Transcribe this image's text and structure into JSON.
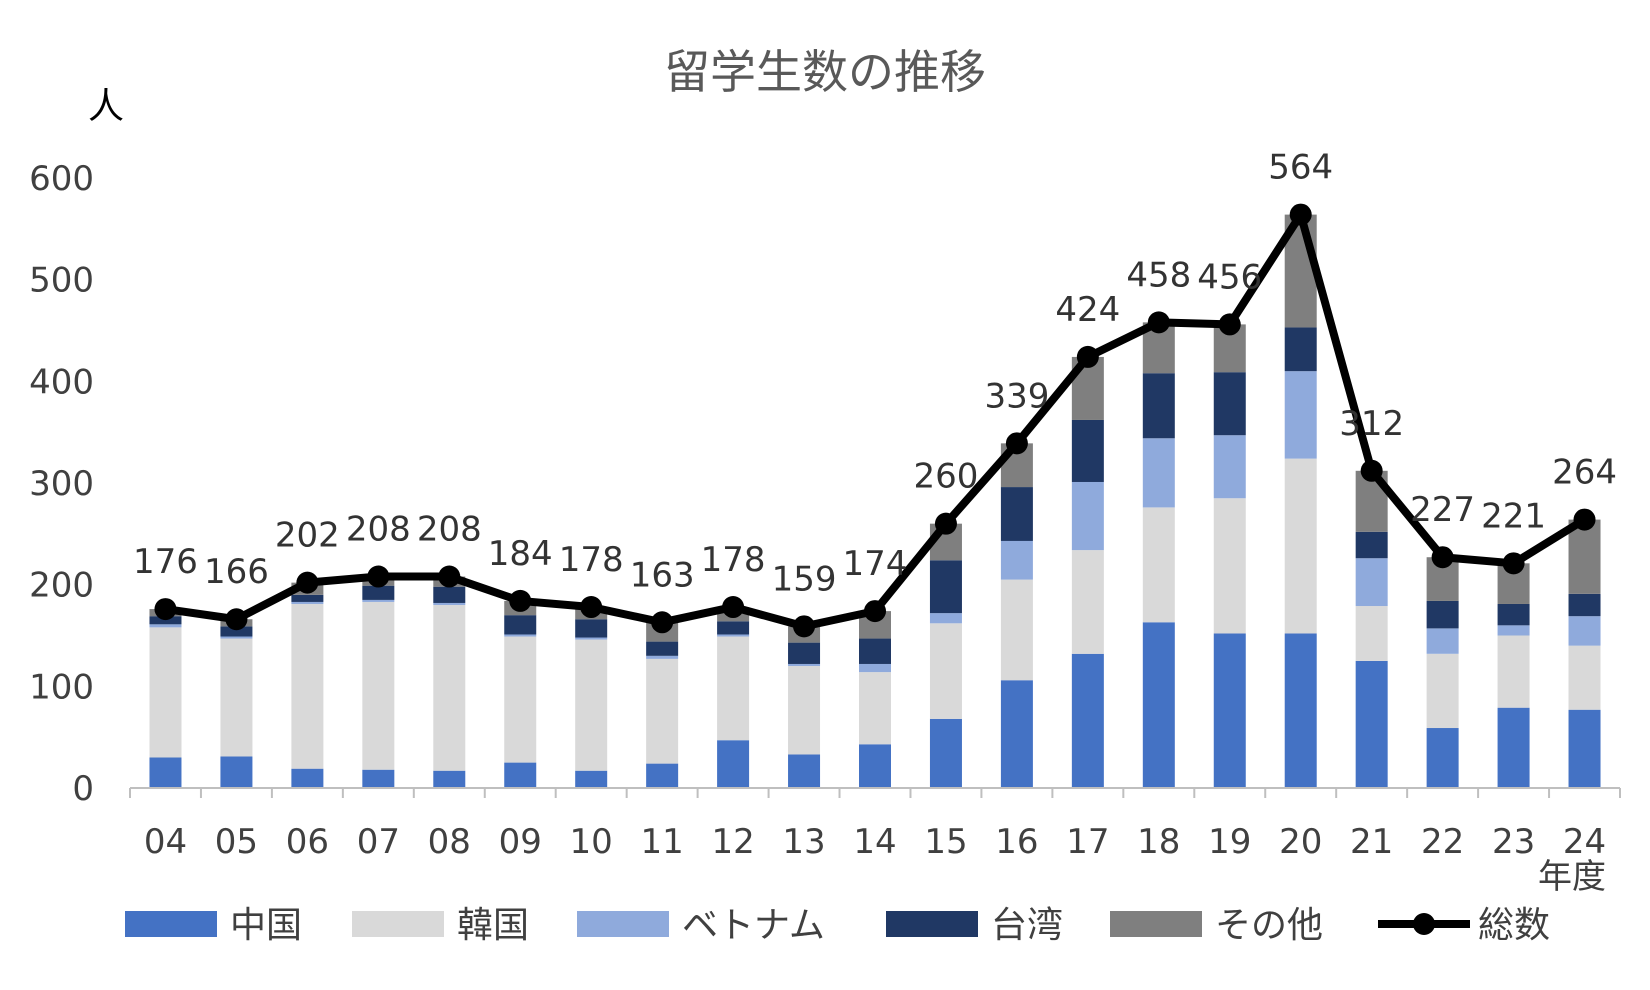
{
  "chart_data": {
    "type": "bar",
    "stacked": true,
    "title": "留学生数の推移",
    "ylabel": "人",
    "xlabel": "年度",
    "ylim": [
      0,
      600
    ],
    "yticks": [
      0,
      100,
      200,
      300,
      400,
      500,
      600
    ],
    "categories": [
      "04",
      "05",
      "06",
      "07",
      "08",
      "09",
      "10",
      "11",
      "12",
      "13",
      "14",
      "15",
      "16",
      "17",
      "18",
      "19",
      "20",
      "21",
      "22",
      "23",
      "24"
    ],
    "series": [
      {
        "name": "中国",
        "color": "#4472C4",
        "values": [
          30,
          31,
          19,
          18,
          17,
          25,
          17,
          24,
          47,
          33,
          43,
          68,
          106,
          132,
          163,
          152,
          152,
          125,
          59,
          79,
          77
        ]
      },
      {
        "name": "韓国",
        "color": "#D9D9D9",
        "values": [
          128,
          116,
          162,
          165,
          163,
          124,
          129,
          103,
          102,
          87,
          71,
          94,
          99,
          102,
          113,
          133,
          172,
          54,
          73,
          71,
          63
        ]
      },
      {
        "name": "ベトナム",
        "color": "#8FAADC",
        "values": [
          3,
          2,
          2,
          2,
          2,
          2,
          2,
          3,
          2,
          2,
          8,
          10,
          38,
          67,
          68,
          62,
          86,
          47,
          25,
          10,
          29
        ]
      },
      {
        "name": "台湾",
        "color": "#203864",
        "values": [
          8,
          10,
          7,
          14,
          16,
          19,
          18,
          14,
          13,
          21,
          25,
          52,
          53,
          61,
          64,
          62,
          43,
          26,
          27,
          21,
          22
        ]
      },
      {
        "name": "その他",
        "color": "#7F7F7F",
        "values": [
          7,
          7,
          12,
          9,
          10,
          14,
          12,
          19,
          14,
          16,
          27,
          36,
          43,
          62,
          50,
          47,
          111,
          60,
          43,
          40,
          73
        ]
      }
    ],
    "total": {
      "name": "総数",
      "color": "#000000",
      "values": [
        176,
        166,
        202,
        208,
        208,
        184,
        178,
        163,
        178,
        159,
        174,
        260,
        339,
        424,
        458,
        456,
        564,
        312,
        227,
        221,
        264
      ]
    },
    "legend_position": "bottom"
  }
}
